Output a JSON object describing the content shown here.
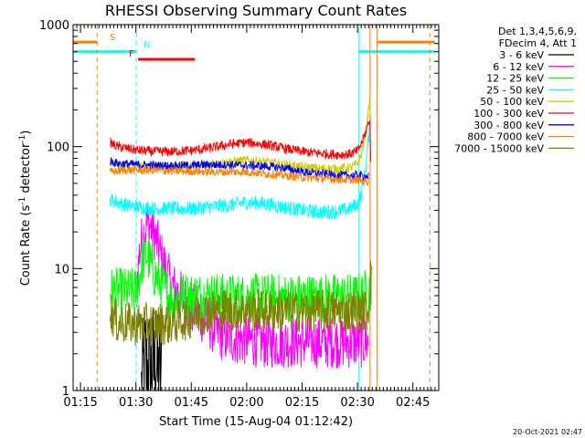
{
  "chart_data": {
    "type": "line",
    "title": "RHESSI Observing Summary Count Rates",
    "xlabel": "Start Time (15-Aug-04 01:12:42)",
    "ylabel_main": "Count Rate (s",
    "ylabel_sup1": "-1",
    "ylabel_mid": " detector",
    "ylabel_sup2": "-1",
    "ylabel_end": ")",
    "y_scale": "log",
    "ylim": [
      1,
      1000
    ],
    "xlim_min": [
      73.0,
      172.0
    ],
    "x_ticks": [
      {
        "t": 75,
        "label": "01:15"
      },
      {
        "t": 90,
        "label": "01:30"
      },
      {
        "t": 105,
        "label": "01:45"
      },
      {
        "t": 120,
        "label": "02:00"
      },
      {
        "t": 135,
        "label": "02:15"
      },
      {
        "t": 150,
        "label": "02:30"
      },
      {
        "t": 165,
        "label": "02:45"
      }
    ],
    "y_ticks": [
      {
        "v": 1,
        "label": "1"
      },
      {
        "v": 10,
        "label": "10"
      },
      {
        "v": 100,
        "label": "100"
      },
      {
        "v": 1000,
        "label": "1000"
      }
    ],
    "legend_header": [
      "Det 1,3,4,5,6,9,",
      "FDecim 4, Att 1"
    ],
    "legend_placement": "right",
    "series": [
      {
        "name": "3 - 6 keV",
        "color": "#000000",
        "points": [
          [
            91.5,
            1
          ],
          [
            92.5,
            1.9
          ],
          [
            93.0,
            1.3
          ],
          [
            93.5,
            1.9
          ],
          [
            94.0,
            1.2
          ],
          [
            94.5,
            1.9
          ],
          [
            95.0,
            1.4
          ],
          [
            95.5,
            1.9
          ],
          [
            96.0,
            1.2
          ],
          [
            96.5,
            1.9
          ],
          [
            97.0,
            1
          ]
        ]
      },
      {
        "name": "6 - 12 keV",
        "color": "#ff00ff",
        "points": [
          [
            90.2,
            7
          ],
          [
            91,
            14
          ],
          [
            92,
            19
          ],
          [
            93,
            23
          ],
          [
            94,
            22
          ],
          [
            95,
            19
          ],
          [
            96,
            15
          ],
          [
            97,
            12
          ],
          [
            98,
            10
          ],
          [
            99,
            8
          ],
          [
            100,
            7
          ],
          [
            102,
            6
          ],
          [
            104,
            5
          ],
          [
            106,
            4.5
          ],
          [
            108,
            4
          ],
          [
            110,
            3.5
          ],
          [
            112,
            3
          ],
          [
            114,
            2.8
          ],
          [
            116,
            2.7
          ],
          [
            120,
            2.6
          ],
          [
            125,
            2.5
          ],
          [
            130,
            2.5
          ],
          [
            140,
            2.5
          ],
          [
            150,
            2.5
          ],
          [
            153,
            2.5
          ]
        ]
      },
      {
        "name": "12 - 25 keV",
        "color": "#00ff00",
        "points": [
          [
            83,
            6.5
          ],
          [
            87,
            6.5
          ],
          [
            90,
            6.5
          ],
          [
            91,
            9
          ],
          [
            92,
            12
          ],
          [
            93,
            13
          ],
          [
            94,
            11
          ],
          [
            95,
            9
          ],
          [
            96,
            8
          ],
          [
            97,
            7.5
          ],
          [
            98,
            6.5
          ],
          [
            99,
            6
          ],
          [
            100,
            5.5
          ],
          [
            102,
            6
          ],
          [
            105,
            6
          ],
          [
            110,
            6
          ],
          [
            115,
            5.8
          ],
          [
            120,
            5.8
          ],
          [
            125,
            5.8
          ],
          [
            130,
            5.8
          ],
          [
            140,
            5.8
          ],
          [
            150,
            5.8
          ],
          [
            153,
            6.5
          ],
          [
            154,
            7.5
          ]
        ]
      },
      {
        "name": "25 - 50 keV",
        "color": "#00ffff",
        "points": [
          [
            83,
            37
          ],
          [
            86,
            34
          ],
          [
            90,
            32
          ],
          [
            95,
            31
          ],
          [
            100,
            31
          ],
          [
            105,
            31
          ],
          [
            110,
            32
          ],
          [
            115,
            33
          ],
          [
            120,
            35
          ],
          [
            125,
            34
          ],
          [
            130,
            32
          ],
          [
            135,
            30
          ],
          [
            140,
            29
          ],
          [
            145,
            29.5
          ],
          [
            148,
            31
          ],
          [
            150,
            34
          ],
          [
            151,
            40
          ],
          [
            152,
            60
          ],
          [
            152.8,
            100
          ],
          [
            153.4,
            155
          ]
        ]
      },
      {
        "name": "50 - 100 keV",
        "color": "#cccc00",
        "points": [
          [
            83,
            75
          ],
          [
            86,
            71
          ],
          [
            90,
            70
          ],
          [
            95,
            69
          ],
          [
            100,
            69
          ],
          [
            105,
            70
          ],
          [
            110,
            72
          ],
          [
            115,
            75
          ],
          [
            120,
            77
          ],
          [
            125,
            75
          ],
          [
            130,
            71
          ],
          [
            135,
            68
          ],
          [
            140,
            66
          ],
          [
            145,
            66
          ],
          [
            148,
            67
          ],
          [
            150,
            72
          ],
          [
            151,
            85
          ],
          [
            152,
            120
          ],
          [
            152.8,
            180
          ],
          [
            153.3,
            250
          ],
          [
            153.6,
            170
          ]
        ]
      },
      {
        "name": "100 - 300 keV",
        "color": "#ff0000",
        "points": [
          [
            83,
            108
          ],
          [
            85,
            100
          ],
          [
            88,
            96
          ],
          [
            91,
            93
          ],
          [
            95,
            91
          ],
          [
            100,
            91
          ],
          [
            105,
            93
          ],
          [
            110,
            97
          ],
          [
            115,
            104
          ],
          [
            120,
            108
          ],
          [
            125,
            104
          ],
          [
            130,
            97
          ],
          [
            135,
            91
          ],
          [
            140,
            88
          ],
          [
            145,
            86
          ],
          [
            148,
            87
          ],
          [
            150,
            92
          ],
          [
            151,
            105
          ],
          [
            152,
            125
          ],
          [
            152.8,
            150
          ],
          [
            153.4,
            170
          ],
          [
            153.6,
            60
          ]
        ]
      },
      {
        "name": "300 - 800 keV",
        "color": "#0000ff",
        "points": [
          [
            83,
            76
          ],
          [
            85,
            73
          ],
          [
            88,
            72
          ],
          [
            91,
            71
          ],
          [
            95,
            70
          ],
          [
            100,
            70
          ],
          [
            105,
            70
          ],
          [
            110,
            71
          ],
          [
            115,
            71
          ],
          [
            120,
            70
          ],
          [
            125,
            69
          ],
          [
            130,
            67
          ],
          [
            135,
            62
          ],
          [
            140,
            60
          ],
          [
            145,
            58
          ],
          [
            150,
            58
          ],
          [
            153,
            57
          ]
        ]
      },
      {
        "name": "800 - 7000 keV",
        "color": "#ff8000",
        "points": [
          [
            83,
            62
          ],
          [
            85,
            63
          ],
          [
            88,
            64
          ],
          [
            91,
            64
          ],
          [
            95,
            64
          ],
          [
            100,
            63
          ],
          [
            105,
            63
          ],
          [
            110,
            62
          ],
          [
            115,
            62
          ],
          [
            120,
            62
          ],
          [
            125,
            60
          ],
          [
            130,
            58
          ],
          [
            135,
            56
          ],
          [
            140,
            55
          ],
          [
            145,
            54
          ],
          [
            150,
            53
          ],
          [
            153,
            52
          ]
        ]
      },
      {
        "name": "7000 - 15000 keV",
        "color": "#808000",
        "points": [
          [
            83,
            4.5
          ],
          [
            85,
            3.6
          ],
          [
            90,
            3.5
          ],
          [
            95,
            3.5
          ],
          [
            100,
            3.6
          ],
          [
            105,
            4.0
          ],
          [
            110,
            4.5
          ],
          [
            115,
            4.6
          ],
          [
            120,
            4.6
          ],
          [
            130,
            4.5
          ],
          [
            140,
            4.5
          ],
          [
            150,
            4.5
          ],
          [
            153,
            4.5
          ],
          [
            153.5,
            10
          ],
          [
            153.8,
            6
          ]
        ]
      }
    ],
    "annotations": {
      "S": {
        "label": "S",
        "color": "#ff8000"
      },
      "N": {
        "label": "N",
        "color": "#00ffff"
      },
      "F": {
        "label": "F",
        "color": "#ff0000"
      }
    },
    "bars_log_y": [
      {
        "color": "#ff8000",
        "t0": 73.0,
        "t1": 79.5,
        "y": 720
      },
      {
        "color": "#00ffff",
        "t0": 73.0,
        "t1": 90.1,
        "y": 600
      },
      {
        "color": "#ff0000",
        "t0": 90.6,
        "t1": 106.0,
        "y": 520
      },
      {
        "color": "#00ffff",
        "t0": 150.3,
        "t1": 171.0,
        "y": 600
      },
      {
        "color": "#ff8000",
        "t0": 155.5,
        "t1": 171.0,
        "y": 720
      }
    ],
    "vlines": [
      {
        "t": 79.5,
        "color": "#ff8000",
        "dash": true
      },
      {
        "t": 90.1,
        "color": "#00ffff",
        "dash": true
      },
      {
        "t": 150.4,
        "color": "#00ffff",
        "dash": false
      },
      {
        "t": 153.4,
        "color": "#ff8000",
        "dash": false
      },
      {
        "t": 155.3,
        "color": "#ff8000",
        "dash": false
      },
      {
        "t": 169.6,
        "color": "#ff8000",
        "dash": true
      }
    ]
  },
  "timestamp": "20-Oct-2021 02:47"
}
